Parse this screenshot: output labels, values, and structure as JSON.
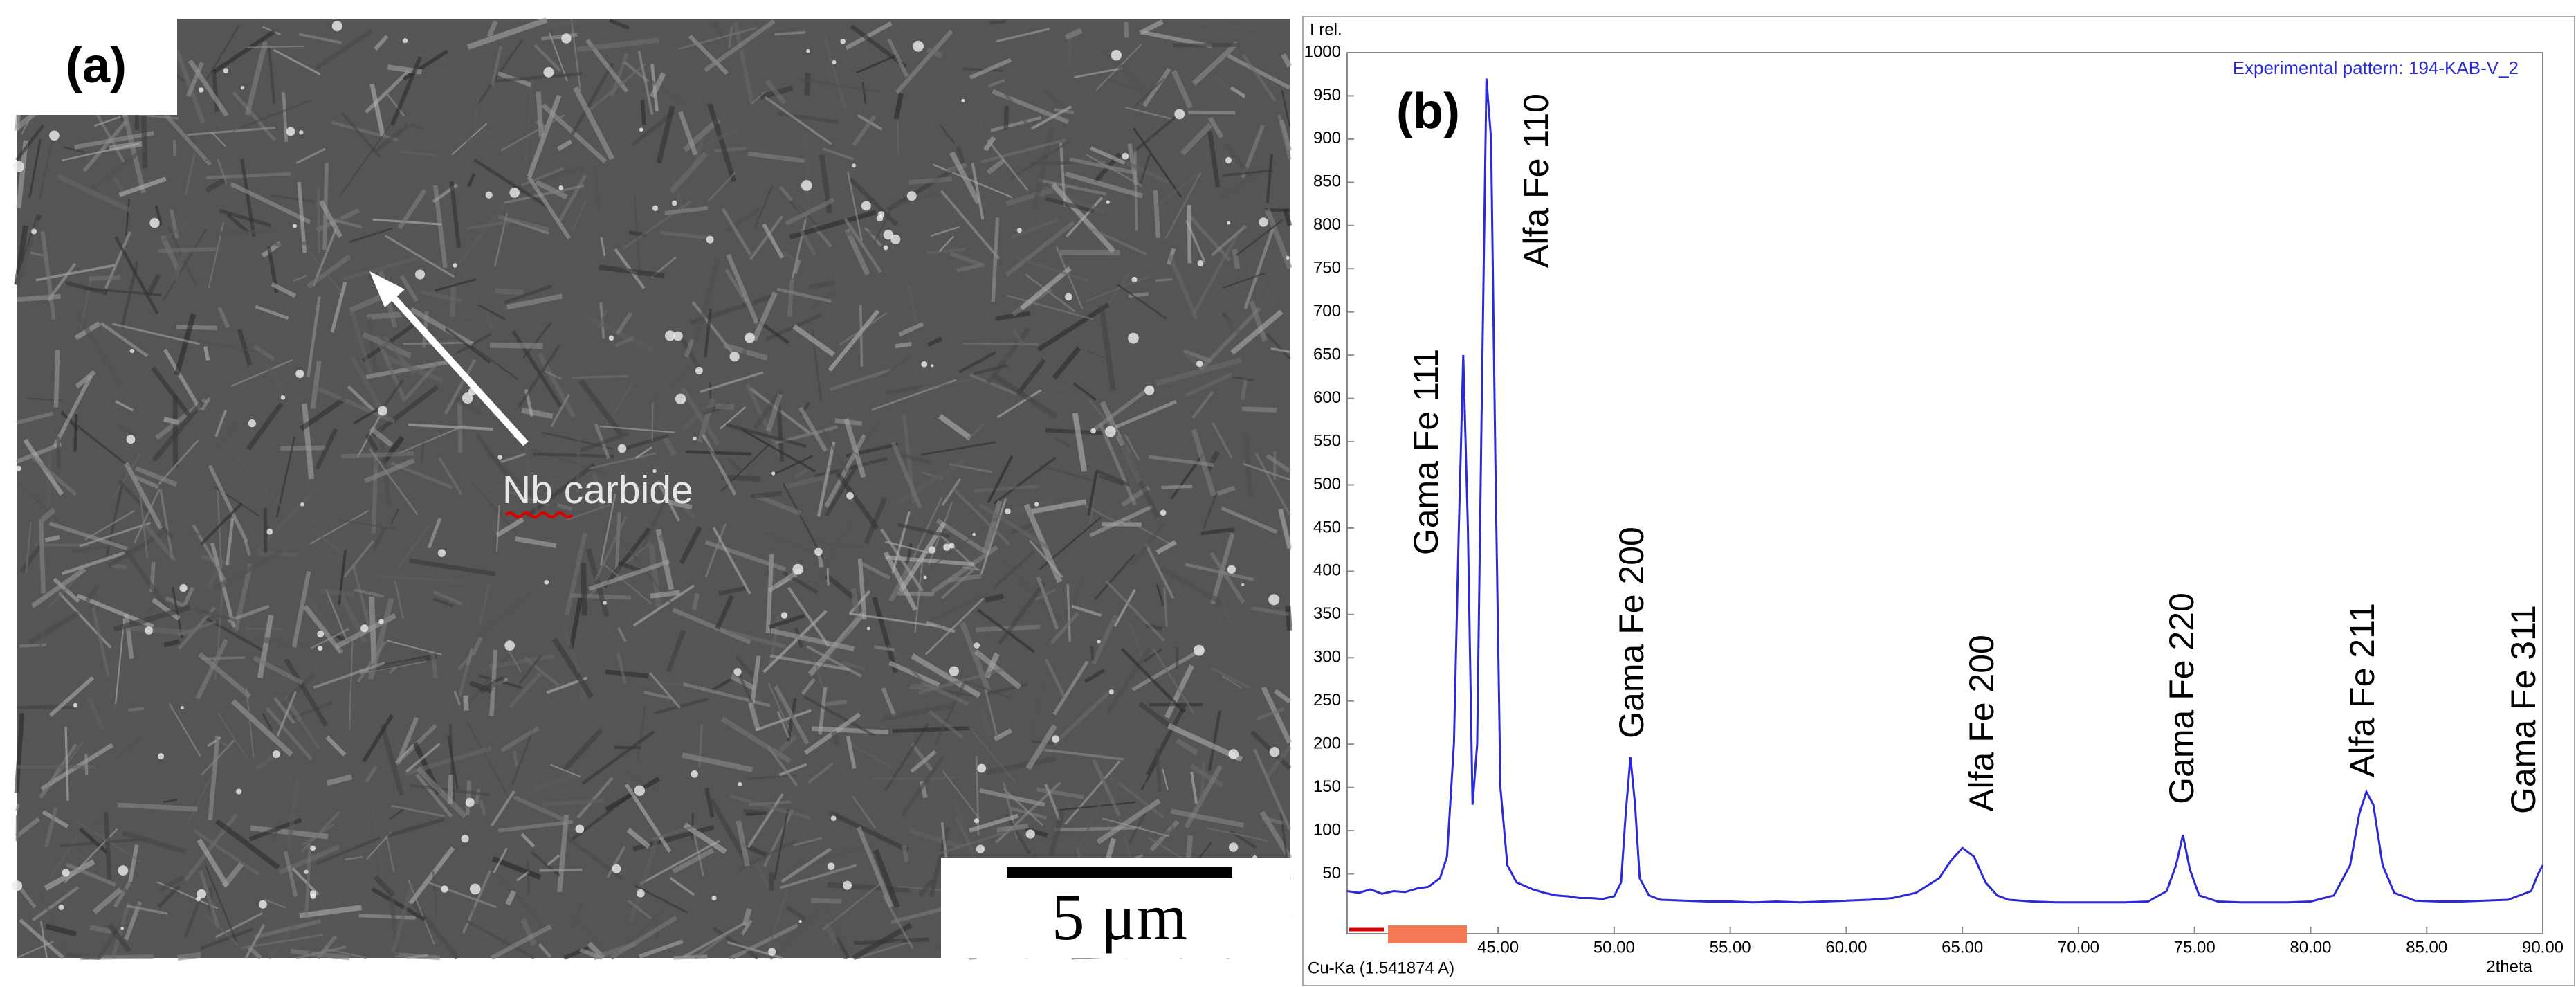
{
  "panel_a": {
    "label": "(a)",
    "annotation": "Nb carbide",
    "scale_bar": "5 μm"
  },
  "chart_data": {
    "type": "line",
    "panel_label": "(b)",
    "ylabel": "I rel.",
    "xlabel": "2theta",
    "footnote": "Cu-Ka (1.541874 A)",
    "x": [
      38.5,
      39,
      39.5,
      40,
      40.5,
      41,
      41.5,
      42,
      42.5,
      42.8,
      43.1,
      43.3,
      43.5,
      43.7,
      43.9,
      44.1,
      44.3,
      44.5,
      44.7,
      44.9,
      45.1,
      45.4,
      45.8,
      46.5,
      47,
      47.5,
      48,
      48.5,
      49,
      49.5,
      50,
      50.3,
      50.5,
      50.7,
      50.9,
      51.1,
      51.5,
      52,
      53,
      54,
      55,
      56,
      57,
      58,
      59,
      60,
      61,
      62,
      63,
      64,
      64.5,
      65,
      65.5,
      66,
      66.5,
      67,
      68,
      69,
      70,
      71,
      72,
      73,
      73.8,
      74.2,
      74.5,
      74.8,
      75.2,
      76,
      77,
      78,
      79,
      80,
      81,
      81.7,
      82.1,
      82.4,
      82.7,
      83.1,
      83.6,
      84.5,
      85.5,
      86.5,
      87.5,
      88.5,
      89.5,
      89.8,
      90
    ],
    "series": [
      {
        "name": "Experimental pattern: 194-KAB-V_2",
        "color": "#2a2ad8",
        "values": [
          30,
          28,
          32,
          27,
          30,
          29,
          33,
          35,
          45,
          70,
          200,
          440,
          650,
          450,
          130,
          200,
          600,
          970,
          900,
          500,
          150,
          60,
          40,
          32,
          28,
          25,
          24,
          22,
          22,
          21,
          24,
          40,
          120,
          185,
          130,
          45,
          25,
          20,
          19,
          18,
          18,
          17,
          18,
          17,
          18,
          19,
          20,
          22,
          28,
          45,
          65,
          80,
          70,
          40,
          25,
          20,
          18,
          17,
          17,
          17,
          17,
          18,
          30,
          60,
          95,
          55,
          25,
          18,
          17,
          17,
          17,
          18,
          25,
          60,
          120,
          145,
          130,
          60,
          28,
          19,
          18,
          18,
          19,
          20,
          30,
          50,
          60
        ]
      }
    ],
    "annotations": [
      "Gama Fe 111",
      "Alfa Fe 110",
      "Gama Fe 200",
      "Alfa Fe 200",
      "Gama Fe 220",
      "Alfa Fe 211",
      "Gama Fe 311"
    ],
    "xlim": [
      38.5,
      90
    ],
    "ylim": [
      0,
      1000
    ],
    "xticks": [
      {
        "value": 45,
        "label": "45.00"
      },
      {
        "value": 50,
        "label": "50.00"
      },
      {
        "value": 55,
        "label": "55.00"
      },
      {
        "value": 60,
        "label": "60.00"
      },
      {
        "value": 65,
        "label": "65.00"
      },
      {
        "value": 70,
        "label": "70.00"
      },
      {
        "value": 75,
        "label": "75.00"
      },
      {
        "value": 80,
        "label": "80.00"
      },
      {
        "value": 85,
        "label": "85.00"
      },
      {
        "value": 90,
        "label": "90.00"
      }
    ],
    "yticks": [
      50,
      100,
      150,
      200,
      250,
      300,
      350,
      400,
      450,
      500,
      550,
      600,
      650,
      700,
      750,
      800,
      850,
      900,
      950,
      1000
    ]
  }
}
